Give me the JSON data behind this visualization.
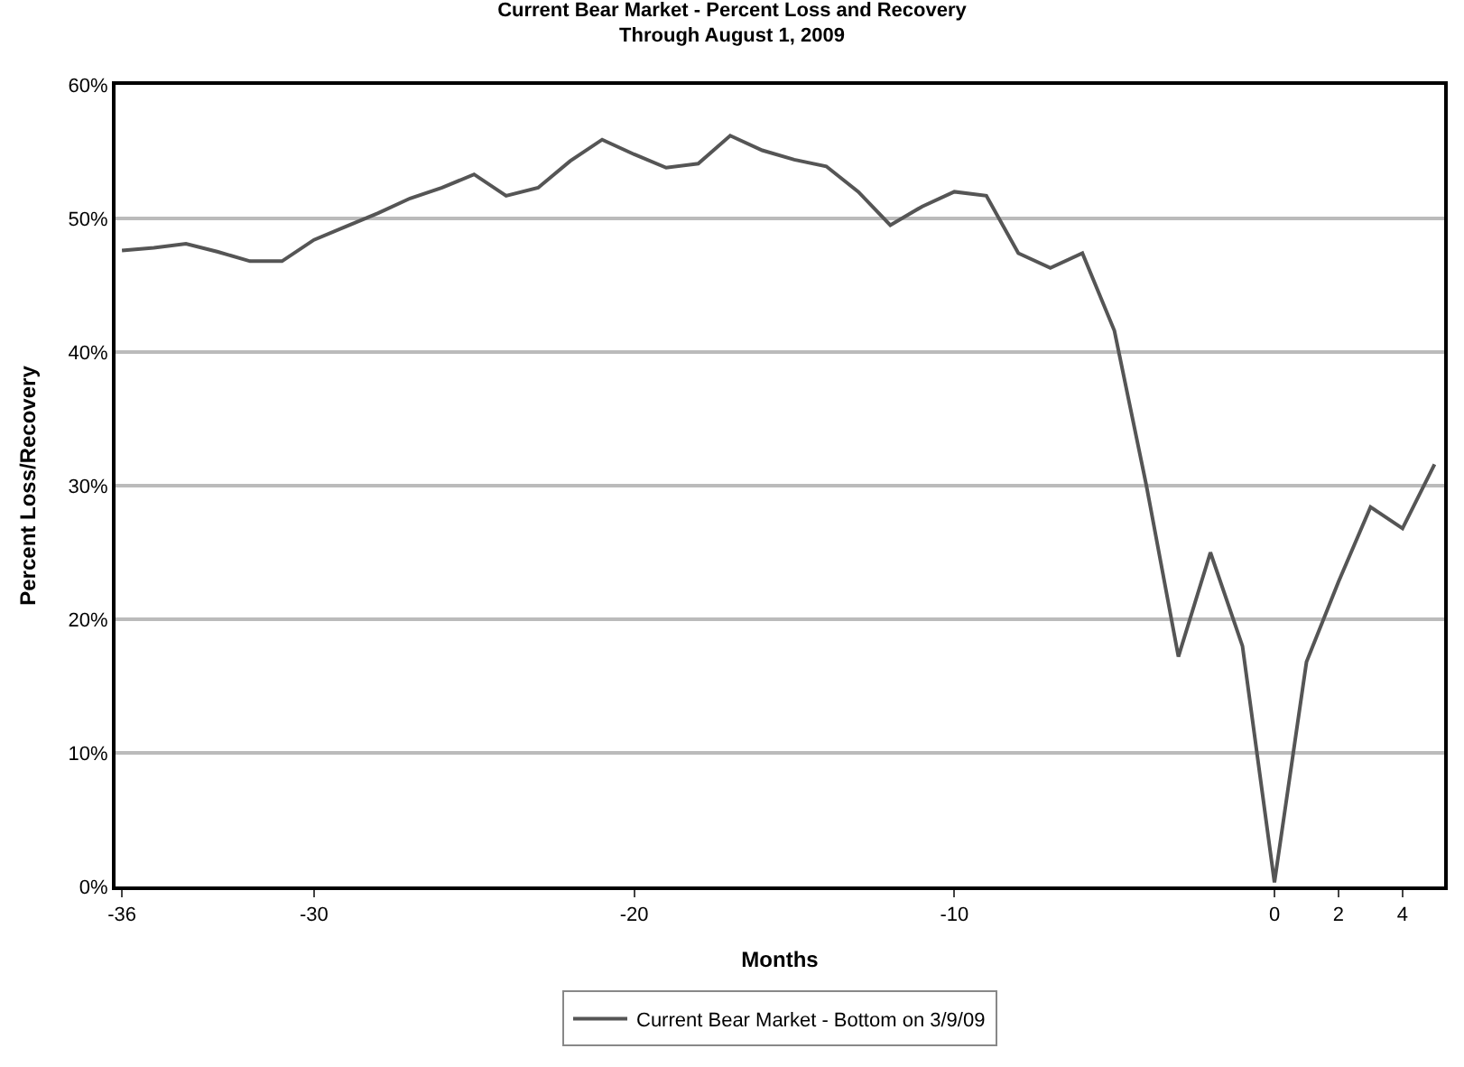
{
  "chart_data": {
    "type": "line",
    "title": "Current Bear Market - Percent Loss and Recovery",
    "subtitle": "Through August 1, 2009",
    "xlabel": "Months",
    "ylabel": "Percent Loss/Recovery",
    "x": [
      -36,
      -35,
      -34,
      -33,
      -32,
      -31,
      -30,
      -29,
      -28,
      -27,
      -26,
      -25,
      -24,
      -23,
      -22,
      -21,
      -20,
      -19,
      -18,
      -17,
      -16,
      -15,
      -14,
      -13,
      -12,
      -11,
      -10,
      -9,
      -8,
      -7,
      -6,
      -5,
      -4,
      -3,
      -2,
      -1,
      0,
      1,
      2,
      3,
      4,
      5
    ],
    "series": [
      {
        "name": "Current Bear Market - Bottom on 3/9/09",
        "color": "#555555",
        "values": [
          47.6,
          47.8,
          48.1,
          47.5,
          46.8,
          46.8,
          48.4,
          49.4,
          50.4,
          51.5,
          52.3,
          53.3,
          51.7,
          52.3,
          54.3,
          55.9,
          54.8,
          53.8,
          54.1,
          56.2,
          55.1,
          54.4,
          53.9,
          52.0,
          49.5,
          50.9,
          52.0,
          51.7,
          47.4,
          46.3,
          47.4,
          41.6,
          30.0,
          17.2,
          25.0,
          18.0,
          0.3,
          16.8,
          22.8,
          28.4,
          26.8,
          31.6
        ]
      }
    ],
    "xlim": [
      -36.2,
      5.3
    ],
    "xticks": [
      -36,
      -30,
      -20,
      -10,
      0,
      2,
      4
    ],
    "ylim": [
      0,
      60
    ],
    "yticks": [
      {
        "value": 0,
        "label": "0%"
      },
      {
        "value": 10,
        "label": "10%"
      },
      {
        "value": 20,
        "label": "20%"
      },
      {
        "value": 30,
        "label": "30%"
      },
      {
        "value": 40,
        "label": "40%"
      },
      {
        "value": 50,
        "label": "50%"
      },
      {
        "value": 60,
        "label": "60%"
      }
    ],
    "grid": "y",
    "legend": "bottom",
    "marker": "none",
    "line_style": "solid"
  }
}
